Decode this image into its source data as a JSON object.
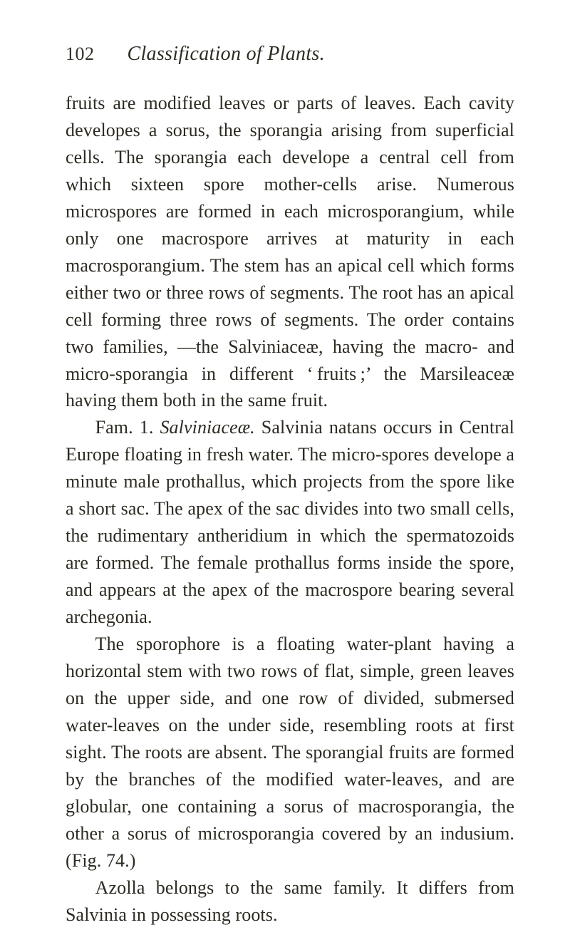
{
  "header": {
    "page_number": "102",
    "running_title": "Classification of Plants."
  },
  "paragraphs": {
    "p1": "fruits are modified leaves or parts of leaves. Each cavity developes a sorus, the sporangia arising from superficial cells. The sporangia each develope a central cell from which sixteen spore mother-cells arise. Numerous microspores are formed in each microsporangium, while only one macrospore arrives at maturity in each macrosporangium. The stem has an apical cell which forms either two or three rows of segments. The root has an apical cell forming three rows of segments. The order contains two families, —the Salviniaceæ, having the macro- and micro-sporangia in different ‘ fruits ;’ the Marsileaceæ having them both in the same fruit.",
    "p2_prefix": "Fam. 1. ",
    "p2_italic": "Salviniaceæ.",
    "p2_rest": " Salvinia natans occurs in Central Europe floating in fresh water. The micro-spores develope a minute male prothallus, which projects from the spore like a short sac. The apex of the sac divides into two small cells, the rudimentary antheridium in which the spermatozoids are formed. The female prothallus forms inside the spore, and appears at the apex of the macrospore bearing several archegonia.",
    "p3": "The sporophore is a floating water-plant having a horizontal stem with two rows of flat, simple, green leaves on the upper side, and one row of divided, submersed water-leaves on the under side, resembling roots at first sight. The roots are absent. The sporangial fruits are formed by the branches of the modified water-leaves, and are globular, one containing a sorus of macrosporangia, the other a sorus of microsporangia covered by an indusium. (Fig. 74.)",
    "p4": "Azolla belongs to the same family. It differs from Salvinia in possessing roots."
  }
}
